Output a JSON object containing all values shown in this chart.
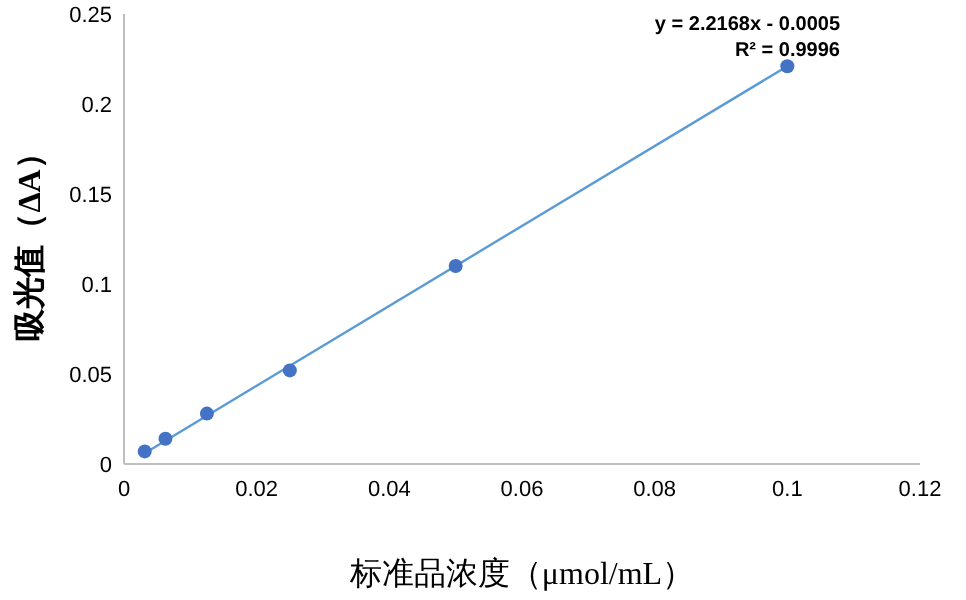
{
  "chart_data": {
    "type": "scatter",
    "xlabel": "标准品浓度（μmol/mL）",
    "ylabel": "吸光值（ΔA）",
    "xlim": [
      0,
      0.12
    ],
    "xticks": [
      0,
      0.02,
      0.04,
      0.06,
      0.08,
      0.1,
      0.12
    ],
    "ylim": [
      0,
      0.25
    ],
    "yticks": [
      0,
      0.05,
      0.1,
      0.15,
      0.2,
      0.25
    ],
    "grid": false,
    "marker": "circle",
    "series": [
      {
        "type": "scatter",
        "color": "#4472c4",
        "x": [
          0.003125,
          0.00625,
          0.0125,
          0.025,
          0.05,
          0.1
        ],
        "values": [
          0.007,
          0.014,
          0.028,
          0.052,
          0.11,
          0.221
        ]
      },
      {
        "type": "line",
        "color": "#5b9bd5",
        "marker": "none",
        "x": [
          0.003125,
          0.1
        ],
        "values": [
          0.006,
          0.221
        ]
      }
    ],
    "annotations": [
      "y = 2.2168x - 0.0005",
      "R² = 0.9996"
    ]
  }
}
